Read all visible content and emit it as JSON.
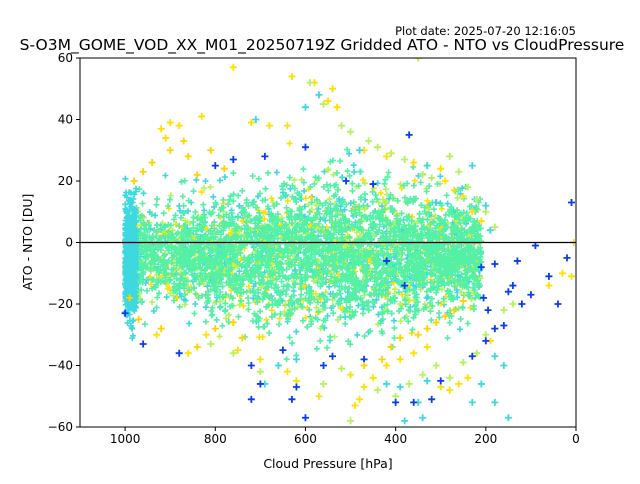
{
  "chart_data": {
    "type": "scatter",
    "title": "S-O3M_GOME_VOD_XX_M01_20250719Z Gridded ATO - NTO vs CloudPressure",
    "subtitle": "Plot date: 2025-07-20 12:16:05",
    "xlabel": "Cloud Pressure [hPa]",
    "ylabel": "ATO - NTO [DU]",
    "xlim": [
      1100,
      0
    ],
    "ylim": [
      -60,
      60
    ],
    "x_reversed": true,
    "x_ticks": [
      1000,
      800,
      600,
      400,
      200,
      0
    ],
    "y_ticks": [
      -60,
      -40,
      -20,
      0,
      20,
      40,
      60
    ],
    "grid": false,
    "reference_line_y": 0,
    "marker": "plus",
    "colors": {
      "bulk": "#54f0a6",
      "cyan": "#3dd8e0",
      "lime": "#b6f25a",
      "yellow": "#ffe000",
      "gold": "#ffd200",
      "blue": "#0a3cf0",
      "royal": "#1f5cff"
    },
    "series": [
      {
        "color_key": "yellow",
        "points": [
          [
            760,
            57
          ],
          [
            630,
            54
          ],
          [
            580,
            52
          ],
          [
            540,
            50
          ],
          [
            550,
            46
          ],
          [
            530,
            44
          ],
          [
            830,
            41
          ],
          [
            880,
            38
          ],
          [
            900,
            39
          ],
          [
            920,
            37
          ],
          [
            910,
            34
          ],
          [
            720,
            39
          ],
          [
            680,
            38
          ],
          [
            640,
            38
          ],
          [
            470,
            30
          ],
          [
            420,
            28
          ],
          [
            360,
            26
          ],
          [
            330,
            25
          ],
          [
            300,
            24
          ],
          [
            290,
            20
          ],
          [
            270,
            17
          ],
          [
            250,
            15
          ],
          [
            230,
            10
          ],
          [
            210,
            7
          ],
          [
            500,
            -43
          ],
          [
            470,
            -47
          ],
          [
            480,
            -51
          ],
          [
            490,
            -53
          ],
          [
            450,
            -44
          ],
          [
            420,
            -40
          ],
          [
            390,
            -38
          ],
          [
            360,
            -36
          ],
          [
            330,
            -34
          ],
          [
            300,
            -47
          ],
          [
            280,
            -48
          ],
          [
            260,
            -46
          ],
          [
            240,
            -44
          ],
          [
            620,
            -45
          ],
          [
            700,
            -38
          ],
          [
            750,
            -35
          ],
          [
            190,
            -32
          ],
          [
            10,
            -11
          ],
          [
            5,
            0
          ],
          [
            60,
            -14
          ],
          [
            30,
            -10
          ],
          [
            860,
            -36
          ],
          [
            930,
            -30
          ],
          [
            820,
            -30
          ],
          [
            570,
            -50
          ],
          [
            640,
            -42
          ]
        ]
      },
      {
        "color_key": "lime",
        "points": [
          [
            350,
            60
          ],
          [
            590,
            52
          ],
          [
            560,
            45
          ],
          [
            520,
            38
          ],
          [
            500,
            36
          ],
          [
            460,
            33
          ],
          [
            440,
            31
          ],
          [
            410,
            29
          ],
          [
            380,
            27
          ],
          [
            340,
            22
          ],
          [
            320,
            21
          ],
          [
            280,
            28
          ],
          [
            260,
            23
          ],
          [
            240,
            18
          ],
          [
            220,
            14
          ],
          [
            200,
            10
          ],
          [
            180,
            5
          ],
          [
            500,
            -58
          ],
          [
            560,
            -46
          ],
          [
            520,
            -41
          ],
          [
            440,
            -48
          ],
          [
            400,
            -50
          ],
          [
            370,
            -46
          ],
          [
            340,
            -43
          ],
          [
            310,
            -40
          ],
          [
            280,
            -44
          ],
          [
            250,
            -39
          ],
          [
            220,
            -36
          ],
          [
            200,
            -30
          ],
          [
            180,
            -28
          ],
          [
            160,
            -22
          ],
          [
            140,
            -20
          ],
          [
            700,
            -42
          ],
          [
            760,
            -36
          ],
          [
            810,
            -33
          ]
        ]
      },
      {
        "color_key": "cyan",
        "points": [
          [
            710,
            40
          ],
          [
            600,
            44
          ],
          [
            570,
            48
          ],
          [
            480,
            30
          ],
          [
            330,
            25
          ],
          [
            310,
            13
          ],
          [
            230,
            25
          ],
          [
            200,
            12
          ],
          [
            190,
            4
          ],
          [
            230,
            -52
          ],
          [
            330,
            -45
          ],
          [
            350,
            -52
          ],
          [
            390,
            -47
          ],
          [
            420,
            -46
          ],
          [
            380,
            -58
          ],
          [
            340,
            -57
          ],
          [
            210,
            -46
          ],
          [
            180,
            -37
          ],
          [
            160,
            -40
          ],
          [
            150,
            -57
          ],
          [
            180,
            -52
          ],
          [
            690,
            -46
          ],
          [
            660,
            -40
          ],
          [
            620,
            -38
          ]
        ]
      },
      {
        "color_key": "blue",
        "points": [
          [
            370,
            35
          ],
          [
            600,
            31
          ],
          [
            690,
            28
          ],
          [
            760,
            27
          ],
          [
            800,
            25
          ],
          [
            450,
            19
          ],
          [
            510,
            20
          ],
          [
            620,
            -47
          ],
          [
            700,
            -46
          ],
          [
            720,
            -51
          ],
          [
            630,
            -51
          ],
          [
            600,
            -57
          ],
          [
            650,
            -35
          ],
          [
            720,
            -40
          ],
          [
            560,
            -40
          ],
          [
            540,
            -37
          ],
          [
            470,
            -38
          ],
          [
            400,
            -52
          ],
          [
            360,
            -52
          ],
          [
            320,
            -51
          ],
          [
            300,
            -45
          ],
          [
            230,
            -37
          ],
          [
            200,
            -32
          ],
          [
            180,
            -28
          ],
          [
            160,
            -27
          ],
          [
            150,
            -16
          ],
          [
            140,
            -14
          ],
          [
            130,
            -6
          ],
          [
            120,
            -20
          ],
          [
            100,
            -17
          ],
          [
            90,
            -1
          ],
          [
            60,
            -11
          ],
          [
            40,
            -20
          ],
          [
            20,
            -5
          ],
          [
            10,
            13
          ],
          [
            180,
            -7
          ],
          [
            195,
            -22
          ],
          [
            205,
            -18
          ],
          [
            210,
            -8
          ],
          [
            380,
            -14
          ],
          [
            420,
            -6
          ],
          [
            960,
            -33
          ],
          [
            1000,
            -23
          ],
          [
            880,
            -36
          ]
        ]
      },
      {
        "color_key": "gold",
        "points": [
          [
            870,
            33
          ],
          [
            900,
            30
          ],
          [
            940,
            26
          ],
          [
            960,
            23
          ],
          [
            980,
            20
          ],
          [
            860,
            28
          ],
          [
            840,
            22
          ],
          [
            810,
            30
          ],
          [
            780,
            24
          ],
          [
            990,
            -18
          ],
          [
            970,
            -25
          ],
          [
            920,
            -28
          ],
          [
            840,
            -34
          ],
          [
            800,
            -28
          ],
          [
            760,
            -26
          ],
          [
            740,
            -31
          ],
          [
            470,
            -40
          ],
          [
            430,
            -38
          ],
          [
            410,
            -34
          ],
          [
            390,
            -31
          ],
          [
            350,
            -30
          ],
          [
            330,
            -28
          ],
          [
            310,
            -26
          ],
          [
            290,
            -24
          ],
          [
            270,
            -22
          ],
          [
            250,
            -19
          ]
        ]
      }
    ]
  }
}
